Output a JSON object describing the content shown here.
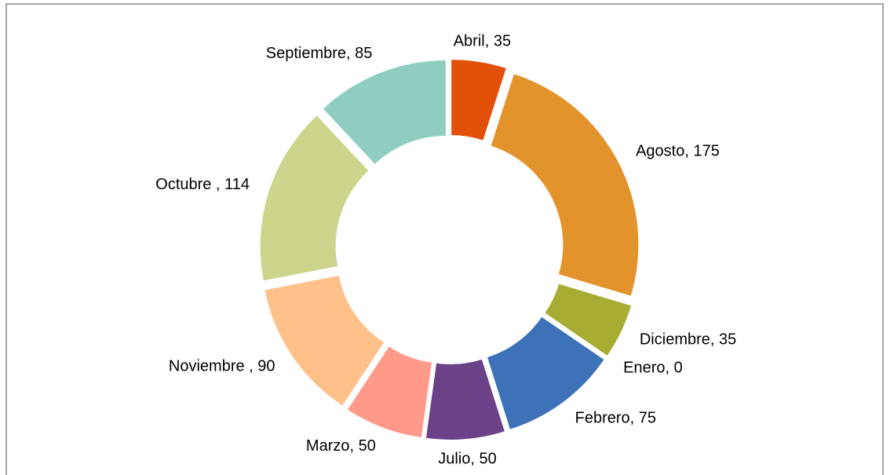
{
  "chart_data": {
    "type": "donut",
    "categories": [
      "Abril",
      "Agosto",
      "Diciembre",
      "Enero",
      "Febrero",
      "Julio",
      "Marzo",
      "Noviembre",
      "Octubre",
      "Septiembre"
    ],
    "values": [
      35,
      175,
      35,
      0,
      75,
      50,
      50,
      90,
      114,
      85
    ],
    "value_labels": [
      "Abril, 35",
      "Agosto, 175",
      "Diciembre, 35",
      "Enero, 0",
      "Febrero, 75",
      "Julio, 50",
      "Marzo, 50",
      "Noviembre , 90",
      "Octubre , 114",
      "Septiembre, 85"
    ],
    "colors": [
      "#e2500a",
      "#e2932b",
      "#a6ad32",
      "#4a9ad4",
      "#3d72b9",
      "#6b4187",
      "#ff9a8a",
      "#ffc18a",
      "#cdd58c",
      "#8ecdc0"
    ]
  }
}
